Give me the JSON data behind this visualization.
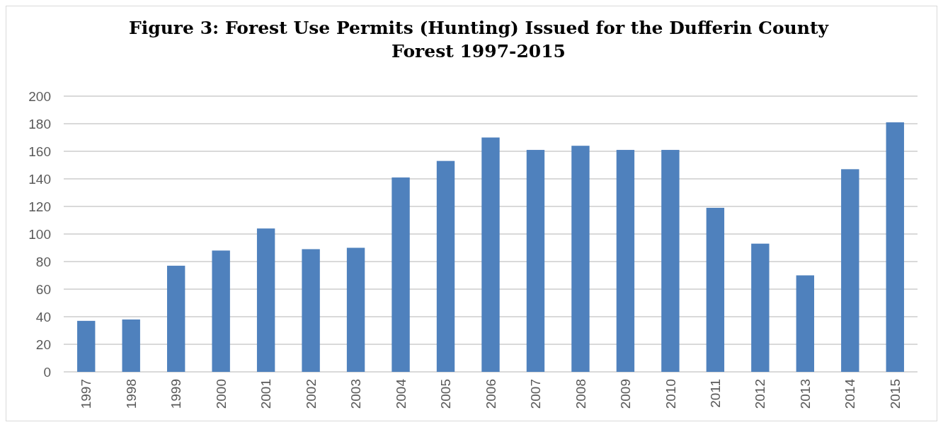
{
  "chart_data": {
    "type": "bar",
    "title": "Figure 3: Forest Use Permits (Hunting) Issued for the Dufferin County Forest 1997-2015",
    "categories": [
      "1997",
      "1998",
      "1999",
      "2000",
      "2001",
      "2002",
      "2003",
      "2004",
      "2005",
      "2006",
      "2007",
      "2008",
      "2009",
      "2010",
      "2011",
      "2012",
      "2013",
      "2014",
      "2015"
    ],
    "values": [
      37,
      38,
      77,
      88,
      104,
      89,
      90,
      141,
      153,
      170,
      161,
      164,
      161,
      161,
      119,
      93,
      70,
      147,
      181
    ],
    "color": "#4f81bd",
    "ylim": [
      0,
      200
    ],
    "yticks": [
      0,
      20,
      40,
      60,
      80,
      100,
      120,
      140,
      160,
      180,
      200
    ],
    "grid": "y"
  }
}
